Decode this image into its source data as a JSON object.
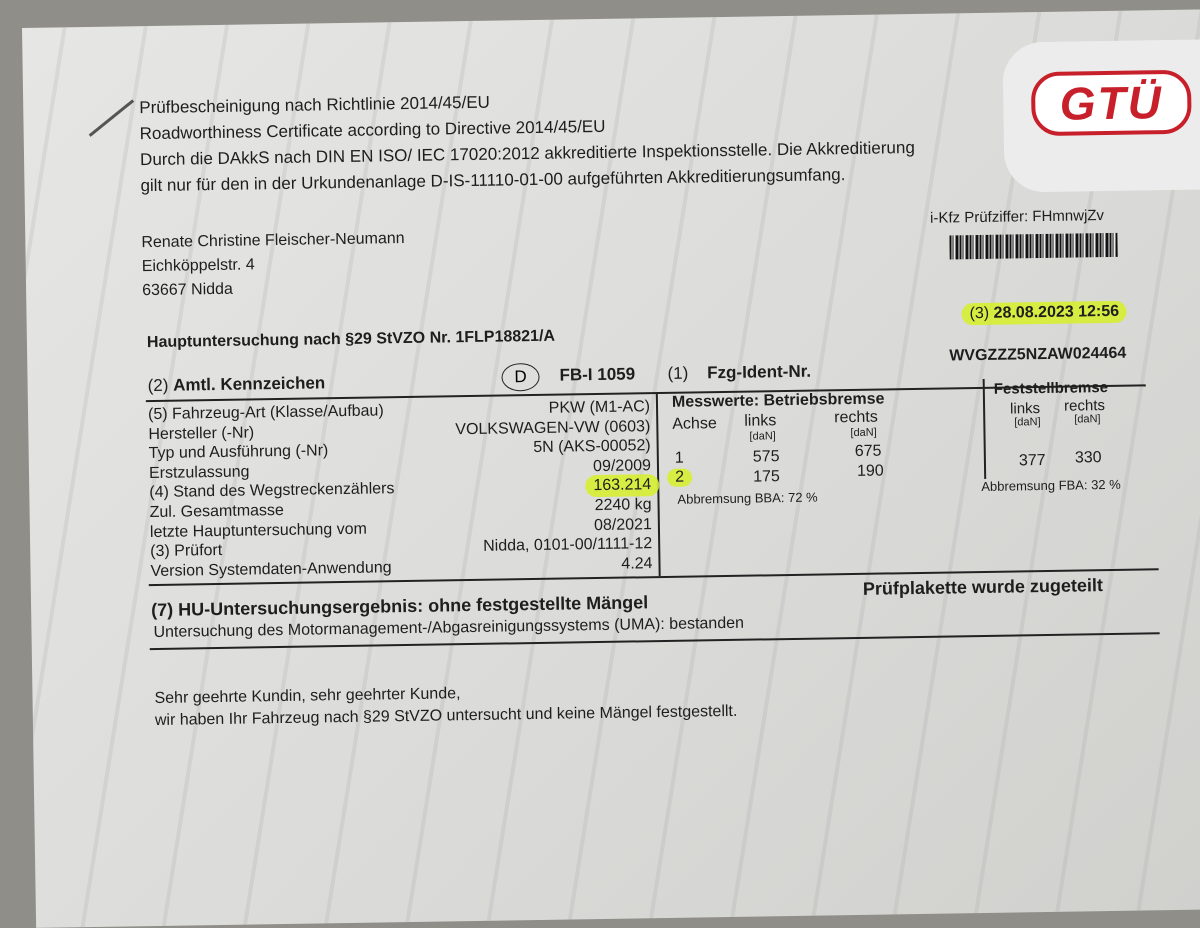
{
  "header": {
    "lines": [
      "Prüfbescheinigung nach Richtlinie 2014/45/EU",
      "Roadworthiness Certificate according to Directive 2014/45/EU",
      "Durch die DAkkS nach DIN EN ISO/ IEC 17020:2012 akkreditierte Inspektionsstelle. Die Akkreditierung",
      "gilt nur für den in der Urkundenanlage D-IS-11110-01-00 aufgeführten Akkreditierungsumfang."
    ],
    "logo_text": "GTÜ",
    "brand_color": "#c8202a"
  },
  "address": [
    "Renate Christine Fleischer-Neumann",
    "Eichköppelstr. 4",
    "63667 Nidda"
  ],
  "pruefziffer": "i-Kfz Prüfziffer: FHmnwjZv",
  "datetime_label": "(3)",
  "datetime": "28.08.2023  12:56",
  "hu_title": "Hauptuntersuchung nach §29 StVZO Nr. 1FLP18821/A",
  "kennzeichen": {
    "label_num": "(2)",
    "label": "Amtl. Kennzeichen",
    "country": "D",
    "value": "FB-I 1059"
  },
  "fzg_ident": {
    "label_num": "(1)",
    "label": "Fzg-Ident-Nr.",
    "value": "WVGZZZ5NZAW024464"
  },
  "vehicle_rows": [
    {
      "label": "(5) Fahrzeug-Art (Klasse/Aufbau)",
      "value": "PKW (M1-AC)"
    },
    {
      "label": "Hersteller (-Nr)",
      "value": "VOLKSWAGEN-VW (0603)"
    },
    {
      "label": "Typ und Ausführung (-Nr)",
      "value": "5N (AKS-00052)"
    },
    {
      "label": "Erstzulassung",
      "value": "09/2009"
    },
    {
      "label": "(4) Stand des Wegstreckenzählers",
      "value": "163.214"
    },
    {
      "label": "Zul. Gesamtmasse",
      "value": "2240 kg"
    },
    {
      "label": "letzte Hauptuntersuchung vom",
      "value": "08/2021"
    },
    {
      "label": "(3) Prüfort",
      "value": "Nidda, 0101-00/1111-12"
    },
    {
      "label": "Version Systemdaten-Anwendung",
      "value": "4.24"
    }
  ],
  "betriebsbremse": {
    "title": "Messwerte: Betriebsbremse",
    "col_achse": "Achse",
    "col_links": "links",
    "col_rechts": "rechts",
    "unit": "[daN]",
    "rows": [
      {
        "achse": "1",
        "links": "575",
        "rechts": "675"
      },
      {
        "achse": "2",
        "links": "175",
        "rechts": "190"
      }
    ],
    "abbremsung": "Abbremsung BBA: 72 %"
  },
  "feststellbremse": {
    "title": "Feststellbremse",
    "col_links": "links",
    "col_rechts": "rechts",
    "unit": "[daN]",
    "links": "377",
    "rechts": "330",
    "abbremsung": "Abbremsung FBA: 32 %"
  },
  "result": {
    "title": "(7) HU-Untersuchungsergebnis: ohne festgestellte Mängel",
    "plakette": "Prüfplakette wurde zugeteilt",
    "uma": "Untersuchung des Motormanagement-/Abgasreinigungssystems (UMA): bestanden"
  },
  "letter": [
    "Sehr geehrte Kundin, sehr geehrter Kunde,",
    "wir haben Ihr Fahrzeug nach §29 StVZO untersucht und keine Mängel festgestellt."
  ],
  "highlight_color": "#d6f028"
}
